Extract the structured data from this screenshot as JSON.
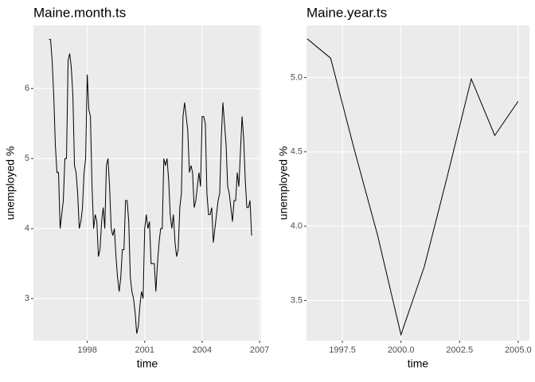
{
  "chart_data": [
    {
      "type": "line",
      "title": "Maine.month.ts",
      "x_label": "time",
      "y_label": "unemployed %",
      "x": [
        1996,
        1996.0833,
        1996.1667,
        1996.25,
        1996.3333,
        1996.4167,
        1996.5,
        1996.5833,
        1996.6667,
        1996.75,
        1996.8333,
        1996.9167,
        1997,
        1997.0833,
        1997.1667,
        1997.25,
        1997.3333,
        1997.4167,
        1997.5,
        1997.5833,
        1997.6667,
        1997.75,
        1997.8333,
        1997.9167,
        1998,
        1998.0833,
        1998.1667,
        1998.25,
        1998.3333,
        1998.4167,
        1998.5,
        1998.5833,
        1998.6667,
        1998.75,
        1998.8333,
        1998.9167,
        1999,
        1999.0833,
        1999.1667,
        1999.25,
        1999.3333,
        1999.4167,
        1999.5,
        1999.5833,
        1999.6667,
        1999.75,
        1999.8333,
        1999.9167,
        2000,
        2000.0833,
        2000.1667,
        2000.25,
        2000.3333,
        2000.4167,
        2000.5,
        2000.5833,
        2000.6667,
        2000.75,
        2000.8333,
        2000.9167,
        2001,
        2001.0833,
        2001.1667,
        2001.25,
        2001.3333,
        2001.4167,
        2001.5,
        2001.5833,
        2001.6667,
        2001.75,
        2001.8333,
        2001.9167,
        2002,
        2002.0833,
        2002.1667,
        2002.25,
        2002.3333,
        2002.4167,
        2002.5,
        2002.5833,
        2002.6667,
        2002.75,
        2002.8333,
        2002.9167,
        2003,
        2003.0833,
        2003.1667,
        2003.25,
        2003.3333,
        2003.4167,
        2003.5,
        2003.5833,
        2003.6667,
        2003.75,
        2003.8333,
        2003.9167,
        2004,
        2004.0833,
        2004.1667,
        2004.25,
        2004.3333,
        2004.4167,
        2004.5,
        2004.5833,
        2004.6667,
        2004.75,
        2004.8333,
        2004.9167,
        2005,
        2005.0833,
        2005.1667,
        2005.25,
        2005.3333,
        2005.4167,
        2005.5,
        2005.5833,
        2005.6667,
        2005.75,
        2005.8333,
        2005.9167,
        2006,
        2006.0833,
        2006.1667,
        2006.25,
        2006.3333,
        2006.4167,
        2006.5,
        2006.5833
      ],
      "series": [
        {
          "color": "#000000",
          "values": [
            6.7,
            6.7,
            6.4,
            5.9,
            5.2,
            4.8,
            4.8,
            4.0,
            4.2,
            4.4,
            5.0,
            5.0,
            6.4,
            6.5,
            6.3,
            5.9,
            4.9,
            4.8,
            4.5,
            4.0,
            4.1,
            4.3,
            4.8,
            5.0,
            6.2,
            5.7,
            5.6,
            4.6,
            4.0,
            4.2,
            4.1,
            3.6,
            3.7,
            4.1,
            4.3,
            4.0,
            4.9,
            5.0,
            4.6,
            4.0,
            3.9,
            4.0,
            3.6,
            3.3,
            3.1,
            3.3,
            3.7,
            3.7,
            4.4,
            4.4,
            4.1,
            3.3,
            3.1,
            3.0,
            2.8,
            2.5,
            2.6,
            2.9,
            3.1,
            3.0,
            4.0,
            4.2,
            4.0,
            4.1,
            3.5,
            3.5,
            3.5,
            3.1,
            3.5,
            3.8,
            4.0,
            4.0,
            5.0,
            4.9,
            5.0,
            4.7,
            4.2,
            4.0,
            4.2,
            3.8,
            3.6,
            3.7,
            4.3,
            4.5,
            5.6,
            5.8,
            5.6,
            5.4,
            4.8,
            4.9,
            4.8,
            4.3,
            4.4,
            4.6,
            4.8,
            4.6,
            5.6,
            5.6,
            5.5,
            4.5,
            4.2,
            4.2,
            4.3,
            3.8,
            4.0,
            4.2,
            4.4,
            4.5,
            5.3,
            5.8,
            5.5,
            5.2,
            4.6,
            4.5,
            4.3,
            4.1,
            4.4,
            4.4,
            4.8,
            4.6,
            5.1,
            5.6,
            5.3,
            4.7,
            4.3,
            4.3,
            4.4,
            3.9
          ]
        }
      ],
      "xlim": [
        1995.19,
        2007.08
      ],
      "xticks": [
        1998,
        2001,
        2004,
        2007
      ],
      "ylim": [
        2.4,
        6.9
      ],
      "yticks": [
        3,
        4,
        5,
        6
      ],
      "grid": true
    },
    {
      "type": "line",
      "title": "Maine.year.ts",
      "x_label": "time",
      "y_label": "unemployed %",
      "x": [
        1996,
        1997,
        1998,
        1999,
        2000,
        2001,
        2002,
        2003,
        2004,
        2005
      ],
      "series": [
        {
          "color": "#000000",
          "values": [
            5.26,
            5.13,
            4.52,
            3.94,
            3.27,
            3.73,
            4.35,
            4.99,
            4.61,
            4.84
          ]
        }
      ],
      "xlim": [
        1995.97,
        2005.48
      ],
      "xticks": [
        {
          "value": 1997.5,
          "label": "1997.5"
        },
        {
          "value": 2000,
          "label": "2000.0"
        },
        {
          "value": 2002.5,
          "label": "2002.5"
        },
        {
          "value": 2005,
          "label": "2005.0"
        }
      ],
      "ylim": [
        3.23,
        5.35
      ],
      "yticks": [
        {
          "value": 3.5,
          "label": "3.5"
        },
        {
          "value": 4,
          "label": "4.0"
        },
        {
          "value": 4.5,
          "label": "4.5"
        },
        {
          "value": 5,
          "label": "5.0"
        }
      ],
      "grid": true
    }
  ]
}
